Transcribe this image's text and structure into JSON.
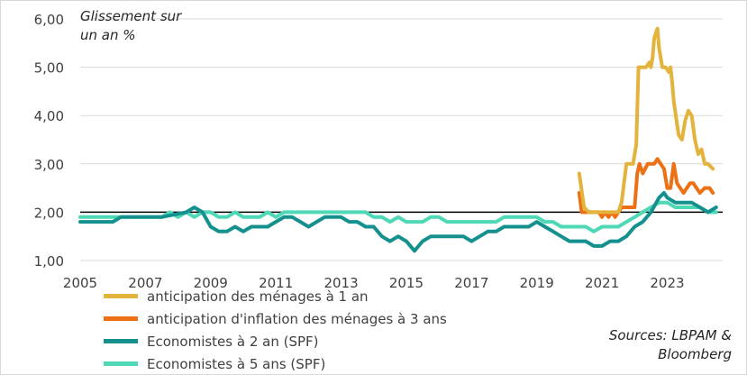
{
  "chart_data": {
    "type": "line",
    "ylabel": "Glissement sur un an %",
    "ylim": [
      1,
      6
    ],
    "xlim": [
      2005,
      2024.7
    ],
    "yticks": [
      "1,00",
      "2,00",
      "3,00",
      "4,00",
      "5,00",
      "6,00"
    ],
    "xticks": [
      "2005",
      "2007",
      "2009",
      "2011",
      "2013",
      "2015",
      "2017",
      "2019",
      "2021",
      "2023"
    ],
    "reference_line": 2.0,
    "series": [
      {
        "name": "anticipation des ménages  à 1 an",
        "color": "#e3b33b",
        "x": [
          2020.3,
          2020.45,
          2020.6,
          2021.0,
          2021.3,
          2021.5,
          2021.6,
          2021.75,
          2021.85,
          2021.95,
          2022.05,
          2022.12,
          2022.2,
          2022.35,
          2022.45,
          2022.5,
          2022.55,
          2022.6,
          2022.7,
          2022.75,
          2022.85,
          2022.95,
          2023.05,
          2023.1,
          2023.15,
          2023.2,
          2023.35,
          2023.45,
          2023.55,
          2023.6,
          2023.65,
          2023.75,
          2023.85,
          2023.95,
          2024.05,
          2024.15,
          2024.25,
          2024.4
        ],
        "values": [
          2.8,
          2.1,
          2.0,
          2.0,
          2.0,
          2.0,
          2.2,
          3.0,
          3.0,
          3.0,
          3.4,
          5.0,
          5.0,
          5.0,
          5.1,
          5.0,
          5.2,
          5.6,
          5.8,
          5.4,
          5.0,
          5.0,
          4.9,
          5.0,
          4.7,
          4.3,
          3.6,
          3.5,
          3.9,
          4.0,
          4.1,
          4.0,
          3.5,
          3.2,
          3.3,
          3.0,
          3.0,
          2.9
        ]
      },
      {
        "name": "anticipation d'inflation des ménages à 3 ans",
        "color": "#ed7014",
        "x": [
          2020.3,
          2020.38,
          2020.5,
          2020.7,
          2020.9,
          2021.0,
          2021.1,
          2021.2,
          2021.3,
          2021.4,
          2021.5,
          2021.6,
          2021.8,
          2022.0,
          2022.08,
          2022.15,
          2022.25,
          2022.4,
          2022.5,
          2022.6,
          2022.7,
          2022.8,
          2022.9,
          2023.0,
          2023.1,
          2023.2,
          2023.3,
          2023.4,
          2023.5,
          2023.6,
          2023.7,
          2023.8,
          2023.9,
          2024.0,
          2024.15,
          2024.3,
          2024.4
        ],
        "values": [
          2.4,
          2.0,
          2.0,
          2.0,
          2.0,
          1.9,
          2.0,
          1.9,
          2.0,
          1.9,
          2.0,
          2.1,
          2.1,
          2.1,
          2.8,
          3.0,
          2.8,
          3.0,
          3.0,
          3.0,
          3.1,
          3.0,
          2.9,
          2.5,
          2.5,
          3.0,
          2.6,
          2.5,
          2.4,
          2.5,
          2.6,
          2.6,
          2.5,
          2.4,
          2.5,
          2.5,
          2.4
        ]
      },
      {
        "name": "Economistes à 2 an (SPF)",
        "color": "#14918f",
        "x": [
          2005.0,
          2006.0,
          2006.25,
          2007.5,
          2008.25,
          2008.5,
          2008.75,
          2009.0,
          2009.25,
          2009.5,
          2009.75,
          2010.0,
          2010.25,
          2010.5,
          2010.75,
          2011.0,
          2011.25,
          2011.5,
          2011.75,
          2012.0,
          2012.25,
          2012.5,
          2012.75,
          2013.0,
          2013.25,
          2013.5,
          2013.75,
          2014.0,
          2014.25,
          2014.5,
          2014.75,
          2015.0,
          2015.25,
          2015.5,
          2015.75,
          2016.0,
          2016.5,
          2016.75,
          2017.0,
          2017.25,
          2017.5,
          2017.75,
          2018.0,
          2018.25,
          2018.5,
          2018.75,
          2019.0,
          2019.25,
          2019.5,
          2019.75,
          2020.0,
          2020.25,
          2020.5,
          2020.75,
          2021.0,
          2021.25,
          2021.5,
          2021.75,
          2022.0,
          2022.25,
          2022.5,
          2022.75,
          2022.9,
          2023.0,
          2023.25,
          2023.5,
          2023.75,
          2024.0,
          2024.25,
          2024.5
        ],
        "values": [
          1.8,
          1.8,
          1.9,
          1.9,
          2.0,
          2.1,
          2.0,
          1.7,
          1.6,
          1.6,
          1.7,
          1.6,
          1.7,
          1.7,
          1.7,
          1.8,
          1.9,
          1.9,
          1.8,
          1.7,
          1.8,
          1.9,
          1.9,
          1.9,
          1.8,
          1.8,
          1.7,
          1.7,
          1.5,
          1.4,
          1.5,
          1.4,
          1.2,
          1.4,
          1.5,
          1.5,
          1.5,
          1.5,
          1.4,
          1.5,
          1.6,
          1.6,
          1.7,
          1.7,
          1.7,
          1.7,
          1.8,
          1.7,
          1.6,
          1.5,
          1.4,
          1.4,
          1.4,
          1.3,
          1.3,
          1.4,
          1.4,
          1.5,
          1.7,
          1.8,
          2.0,
          2.3,
          2.4,
          2.3,
          2.2,
          2.2,
          2.2,
          2.1,
          2.0,
          2.1
        ]
      },
      {
        "name": "Economistes à 5 ans (SPF)",
        "color": "#4fd8b5",
        "x": [
          2005.0,
          2007.5,
          2007.75,
          2008.0,
          2008.25,
          2008.5,
          2008.75,
          2009.0,
          2009.25,
          2009.5,
          2009.75,
          2010.0,
          2010.25,
          2010.5,
          2010.75,
          2011.0,
          2011.25,
          2011.5,
          2011.75,
          2012.0,
          2013.75,
          2014.0,
          2014.25,
          2014.5,
          2014.75,
          2015.0,
          2015.25,
          2015.5,
          2015.75,
          2016.0,
          2016.25,
          2016.5,
          2017.0,
          2017.5,
          2017.75,
          2018.0,
          2018.5,
          2019.0,
          2019.25,
          2019.5,
          2019.75,
          2020.0,
          2020.25,
          2020.5,
          2020.75,
          2021.0,
          2021.25,
          2021.5,
          2021.75,
          2022.0,
          2022.25,
          2022.5,
          2022.75,
          2023.0,
          2023.25,
          2023.5,
          2023.75,
          2024.0,
          2024.25,
          2024.5
        ],
        "values": [
          1.9,
          1.9,
          2.0,
          1.9,
          2.0,
          1.9,
          2.0,
          2.0,
          1.9,
          1.9,
          2.0,
          1.9,
          1.9,
          1.9,
          2.0,
          1.9,
          2.0,
          2.0,
          2.0,
          2.0,
          2.0,
          1.9,
          1.9,
          1.8,
          1.9,
          1.8,
          1.8,
          1.8,
          1.9,
          1.9,
          1.8,
          1.8,
          1.8,
          1.8,
          1.8,
          1.9,
          1.9,
          1.9,
          1.8,
          1.8,
          1.7,
          1.7,
          1.7,
          1.7,
          1.6,
          1.7,
          1.7,
          1.7,
          1.8,
          1.9,
          2.0,
          2.1,
          2.2,
          2.2,
          2.1,
          2.1,
          2.1,
          2.1,
          2.0,
          2.0
        ]
      }
    ],
    "annotations": {
      "unit_note_line1": "Glissement sur",
      "unit_note_line2": "un an %",
      "source_line1": "Sources: LBPAM &",
      "source_line2": "Bloomberg"
    }
  }
}
